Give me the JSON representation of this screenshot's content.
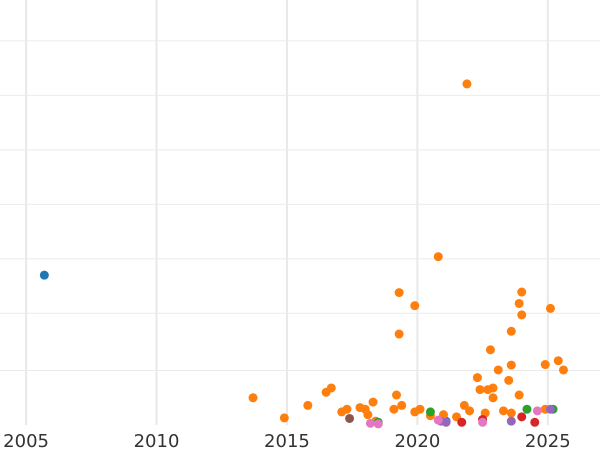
{
  "chart_data": {
    "type": "scatter",
    "title": "",
    "xlabel": "",
    "ylabel": "",
    "grid": true,
    "legend": "none",
    "xlim": [
      2004,
      2027
    ],
    "ylim": [
      -0.05,
      7.75
    ],
    "x_ticks": [
      2005,
      2010,
      2015,
      2020,
      2025
    ],
    "x_tick_labels": [
      "2005",
      "2010",
      "2015",
      "2020",
      "2025"
    ],
    "y_grid": [
      0.95,
      2.0,
      3.0,
      4.0,
      5.0,
      6.0,
      7.0
    ],
    "series": [
      {
        "color": "#1f77b4",
        "points": [
          [
            2005.7,
            2.7
          ],
          [
            2021.1,
            0.02
          ]
        ]
      },
      {
        "color": "#ff7f0e",
        "points": [
          [
            2013.7,
            0.45
          ],
          [
            2014.9,
            0.08
          ],
          [
            2015.8,
            0.31
          ],
          [
            2016.5,
            0.55
          ],
          [
            2016.7,
            0.63
          ],
          [
            2017.1,
            0.19
          ],
          [
            2017.3,
            0.24
          ],
          [
            2017.8,
            0.27
          ],
          [
            2018.0,
            0.24
          ],
          [
            2018.1,
            0.14
          ],
          [
            2018.3,
            0.37
          ],
          [
            2018.4,
            0.02
          ],
          [
            2019.1,
            0.24
          ],
          [
            2019.2,
            0.5
          ],
          [
            2019.3,
            2.38
          ],
          [
            2019.3,
            1.62
          ],
          [
            2019.4,
            0.31
          ],
          [
            2019.9,
            0.19
          ],
          [
            2019.9,
            2.14
          ],
          [
            2020.1,
            0.24
          ],
          [
            2020.5,
            0.12
          ],
          [
            2020.8,
            3.04
          ],
          [
            2021.0,
            0.14
          ],
          [
            2021.5,
            0.1
          ],
          [
            2021.8,
            0.31
          ],
          [
            2021.9,
            6.21
          ],
          [
            2022.0,
            0.21
          ],
          [
            2022.3,
            0.82
          ],
          [
            2022.4,
            0.6
          ],
          [
            2022.5,
            0.05
          ],
          [
            2022.6,
            0.17
          ],
          [
            2022.7,
            0.6
          ],
          [
            2022.8,
            1.33
          ],
          [
            2022.9,
            0.45
          ],
          [
            2022.9,
            0.63
          ],
          [
            2023.1,
            0.96
          ],
          [
            2023.3,
            0.21
          ],
          [
            2023.5,
            0.77
          ],
          [
            2023.6,
            0.17
          ],
          [
            2023.6,
            1.05
          ],
          [
            2023.6,
            1.67
          ],
          [
            2023.9,
            0.5
          ],
          [
            2023.9,
            2.18
          ],
          [
            2024.0,
            1.97
          ],
          [
            2024.0,
            2.39
          ],
          [
            2024.9,
            1.06
          ],
          [
            2024.9,
            0.24
          ],
          [
            2025.1,
            2.09
          ],
          [
            2025.4,
            1.13
          ],
          [
            2025.6,
            0.96
          ]
        ]
      },
      {
        "color": "#2ca02c",
        "points": [
          [
            2018.5,
            0.0
          ],
          [
            2020.5,
            0.19
          ],
          [
            2024.2,
            0.24
          ],
          [
            2025.2,
            0.24
          ]
        ]
      },
      {
        "color": "#d62728",
        "points": [
          [
            2021.7,
            0.0
          ],
          [
            2022.5,
            0.05
          ],
          [
            2024.0,
            0.1
          ],
          [
            2024.5,
            0.0
          ]
        ]
      },
      {
        "color": "#9467bd",
        "points": [
          [
            2020.9,
            0.02
          ],
          [
            2021.1,
            0.0
          ],
          [
            2023.6,
            0.02
          ],
          [
            2025.1,
            0.24
          ]
        ]
      },
      {
        "color": "#8c564b",
        "points": [
          [
            2017.4,
            0.07
          ]
        ]
      },
      {
        "color": "#e377c2",
        "points": [
          [
            2018.2,
            -0.02
          ],
          [
            2018.5,
            -0.03
          ],
          [
            2020.8,
            0.04
          ],
          [
            2022.5,
            0.0
          ],
          [
            2024.6,
            0.21
          ]
        ]
      }
    ]
  }
}
